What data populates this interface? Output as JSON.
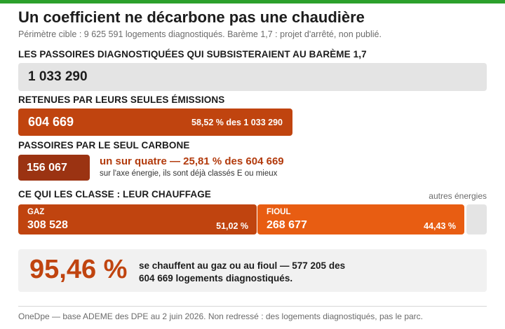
{
  "colors": {
    "accent_top": "#2ca02c",
    "emissions": "#c0440f",
    "carbone": "#9b3312",
    "gaz": "#c0440f",
    "fioul": "#e85d12",
    "neutral": "#e4e4e4",
    "highlight_text": "#b23a0c"
  },
  "header": {
    "title": "Un coefficient ne décarbone pas une chaudière",
    "subtitle": "Périmètre cible : 9 625 591 logements diagnostiqués. Barème 1,7 : projet d'arrêté, non publié."
  },
  "total": {
    "heading": "LES PASSOIRES DIAGNOSTIQUÉES QUI SUBSISTERAIENT AU BARÈME 1,7",
    "value": "1 033 290"
  },
  "emissions": {
    "heading": "RETENUES PAR LEURS SEULES ÉMISSIONS",
    "value": "604 669",
    "share_text": "58,52 % des 1 033 290",
    "share": 0.5852
  },
  "carbone": {
    "heading": "PASSOIRES PAR LE SEUL CARBONE",
    "value": "156 067",
    "main_text": "un sur quatre — 25,81 % des 604 669",
    "sub_text": "sur l'axe énergie, ils sont déjà classés E ou mieux",
    "share": 0.2581
  },
  "chauffage": {
    "heading": "CE QUI LES CLASSE : LEUR CHAUFFAGE",
    "autres_label": "autres énergies",
    "gaz": {
      "label": "GAZ",
      "value": "308 528",
      "pct": "51,02 %"
    },
    "fioul": {
      "label": "FIOUL",
      "value": "268 677",
      "pct": "44,43 %"
    }
  },
  "summary": {
    "big": "95,46 %",
    "text": "se chauffent au gaz ou au fioul — 577 205 des 604 669 logements diagnostiqués."
  },
  "footer": {
    "text": "OneDpe — base ADEME des DPE au 2 juin 2026. Non redressé : des logements diagnostiqués, pas le parc."
  }
}
